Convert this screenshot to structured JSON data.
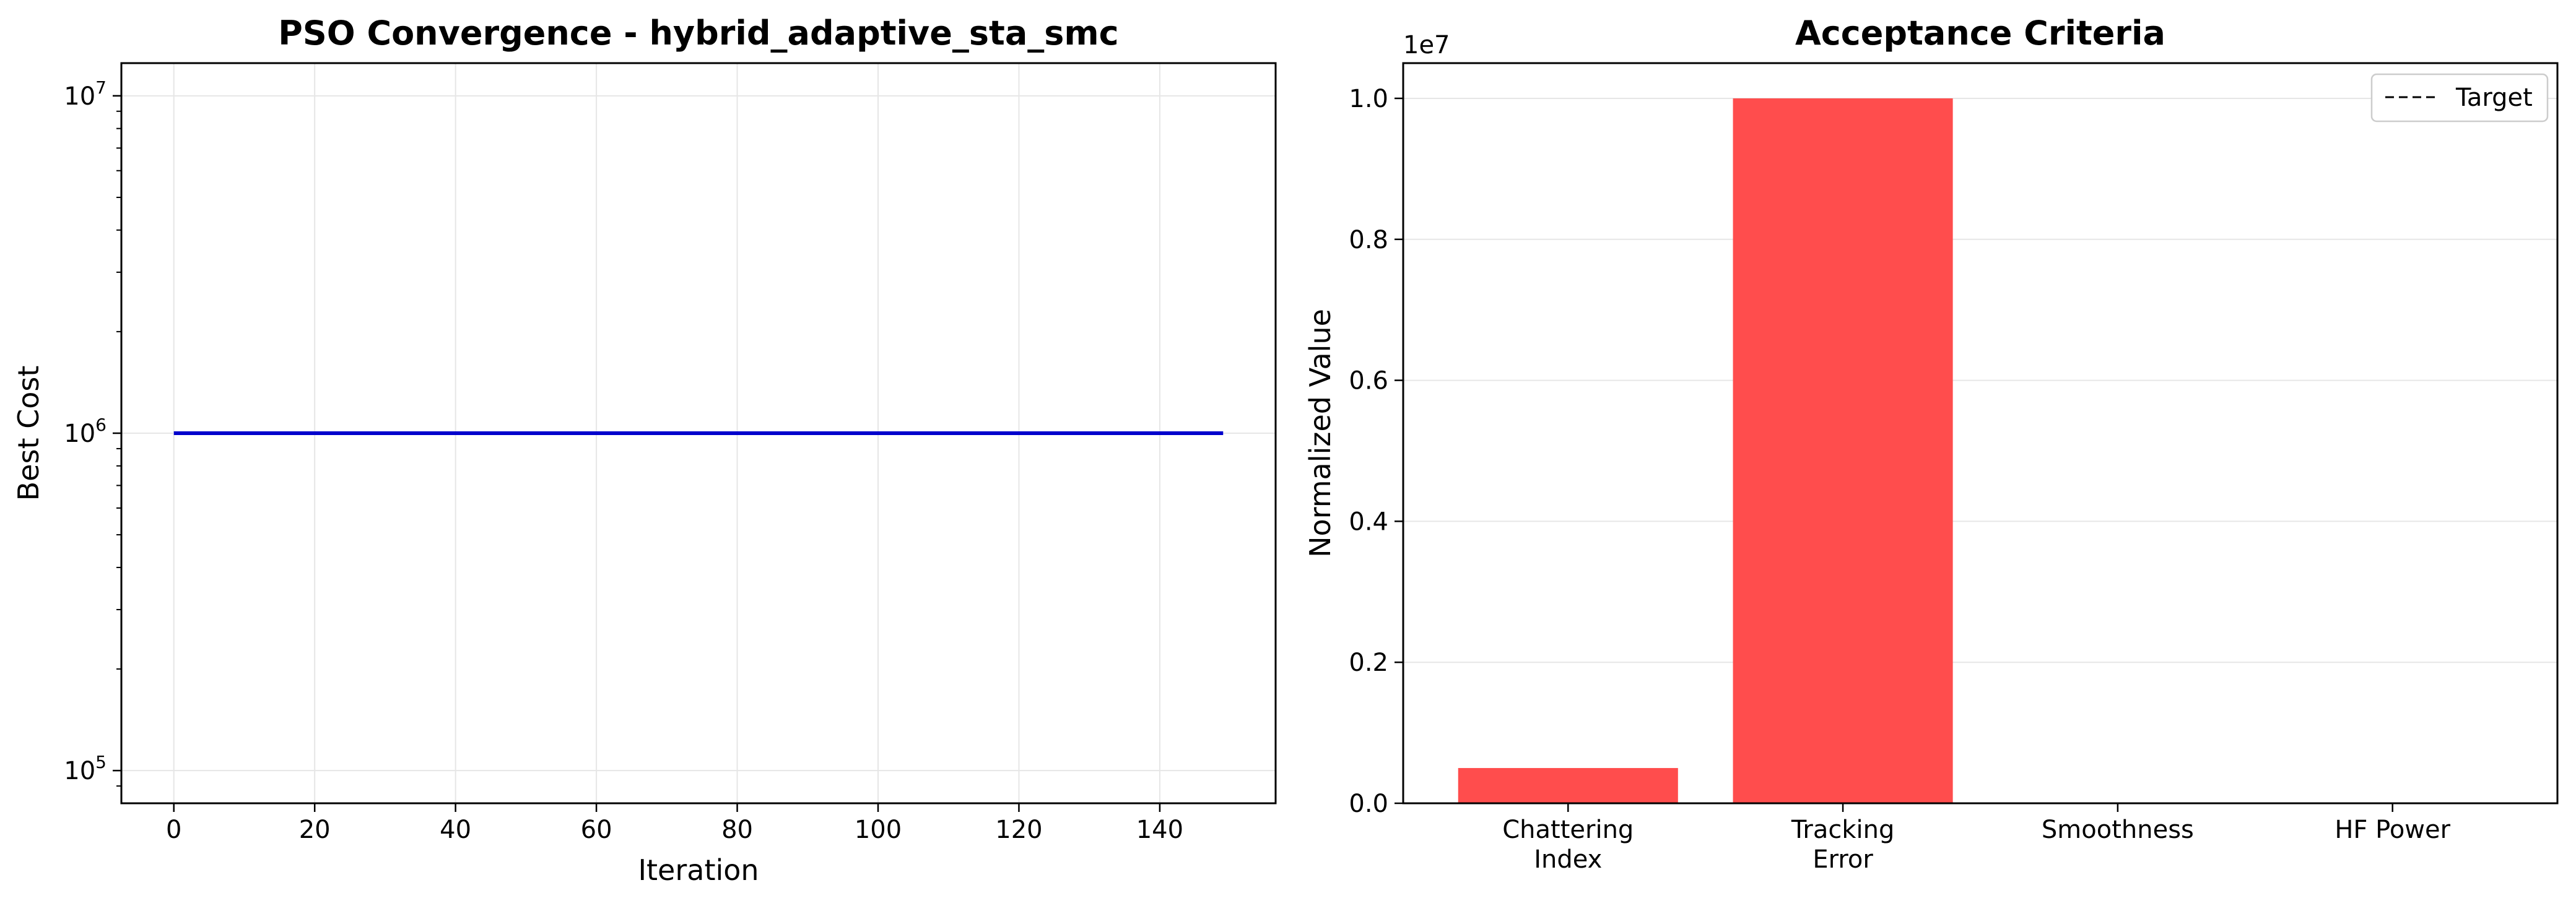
{
  "chart_data": [
    {
      "type": "line",
      "title": "PSO Convergence - hybrid_adaptive_sta_smc",
      "xlabel": "Iteration",
      "ylabel": "Best Cost",
      "yscale": "log",
      "xlim": [
        -7.45,
        156.45
      ],
      "ylim": [
        80000,
        12500000
      ],
      "xticks": [
        0,
        20,
        40,
        60,
        80,
        100,
        120,
        140
      ],
      "yticks": [
        {
          "value": 100000,
          "base": "10",
          "exp": "5"
        },
        {
          "value": 1000000,
          "base": "10",
          "exp": "6"
        },
        {
          "value": 10000000,
          "base": "10",
          "exp": "7"
        }
      ],
      "grid": true,
      "series": [
        {
          "color": "#0000cc",
          "x": [
            0,
            149
          ],
          "y": [
            1000000,
            1000000
          ]
        }
      ]
    },
    {
      "type": "bar",
      "title": "Acceptance Criteria",
      "xlabel": "",
      "ylabel": "Normalized Value",
      "offset_text": "1e7",
      "ylim": [
        0,
        10500000
      ],
      "yticks": [
        {
          "value": 0,
          "label": "0.0"
        },
        {
          "value": 2000000,
          "label": "0.2"
        },
        {
          "value": 4000000,
          "label": "0.4"
        },
        {
          "value": 6000000,
          "label": "0.6"
        },
        {
          "value": 8000000,
          "label": "0.8"
        },
        {
          "value": 10000000,
          "label": "1.0"
        }
      ],
      "categories": [
        [
          "Chattering",
          "Index"
        ],
        [
          "Tracking",
          "Error"
        ],
        [
          "Smoothness"
        ],
        [
          "HF Power"
        ]
      ],
      "values": [
        500000,
        10000000,
        0,
        0
      ],
      "bar_color": "#ff4d4d",
      "target": {
        "label": "Target",
        "value": 0
      },
      "legend_loc": "upper right",
      "grid": "y"
    }
  ]
}
